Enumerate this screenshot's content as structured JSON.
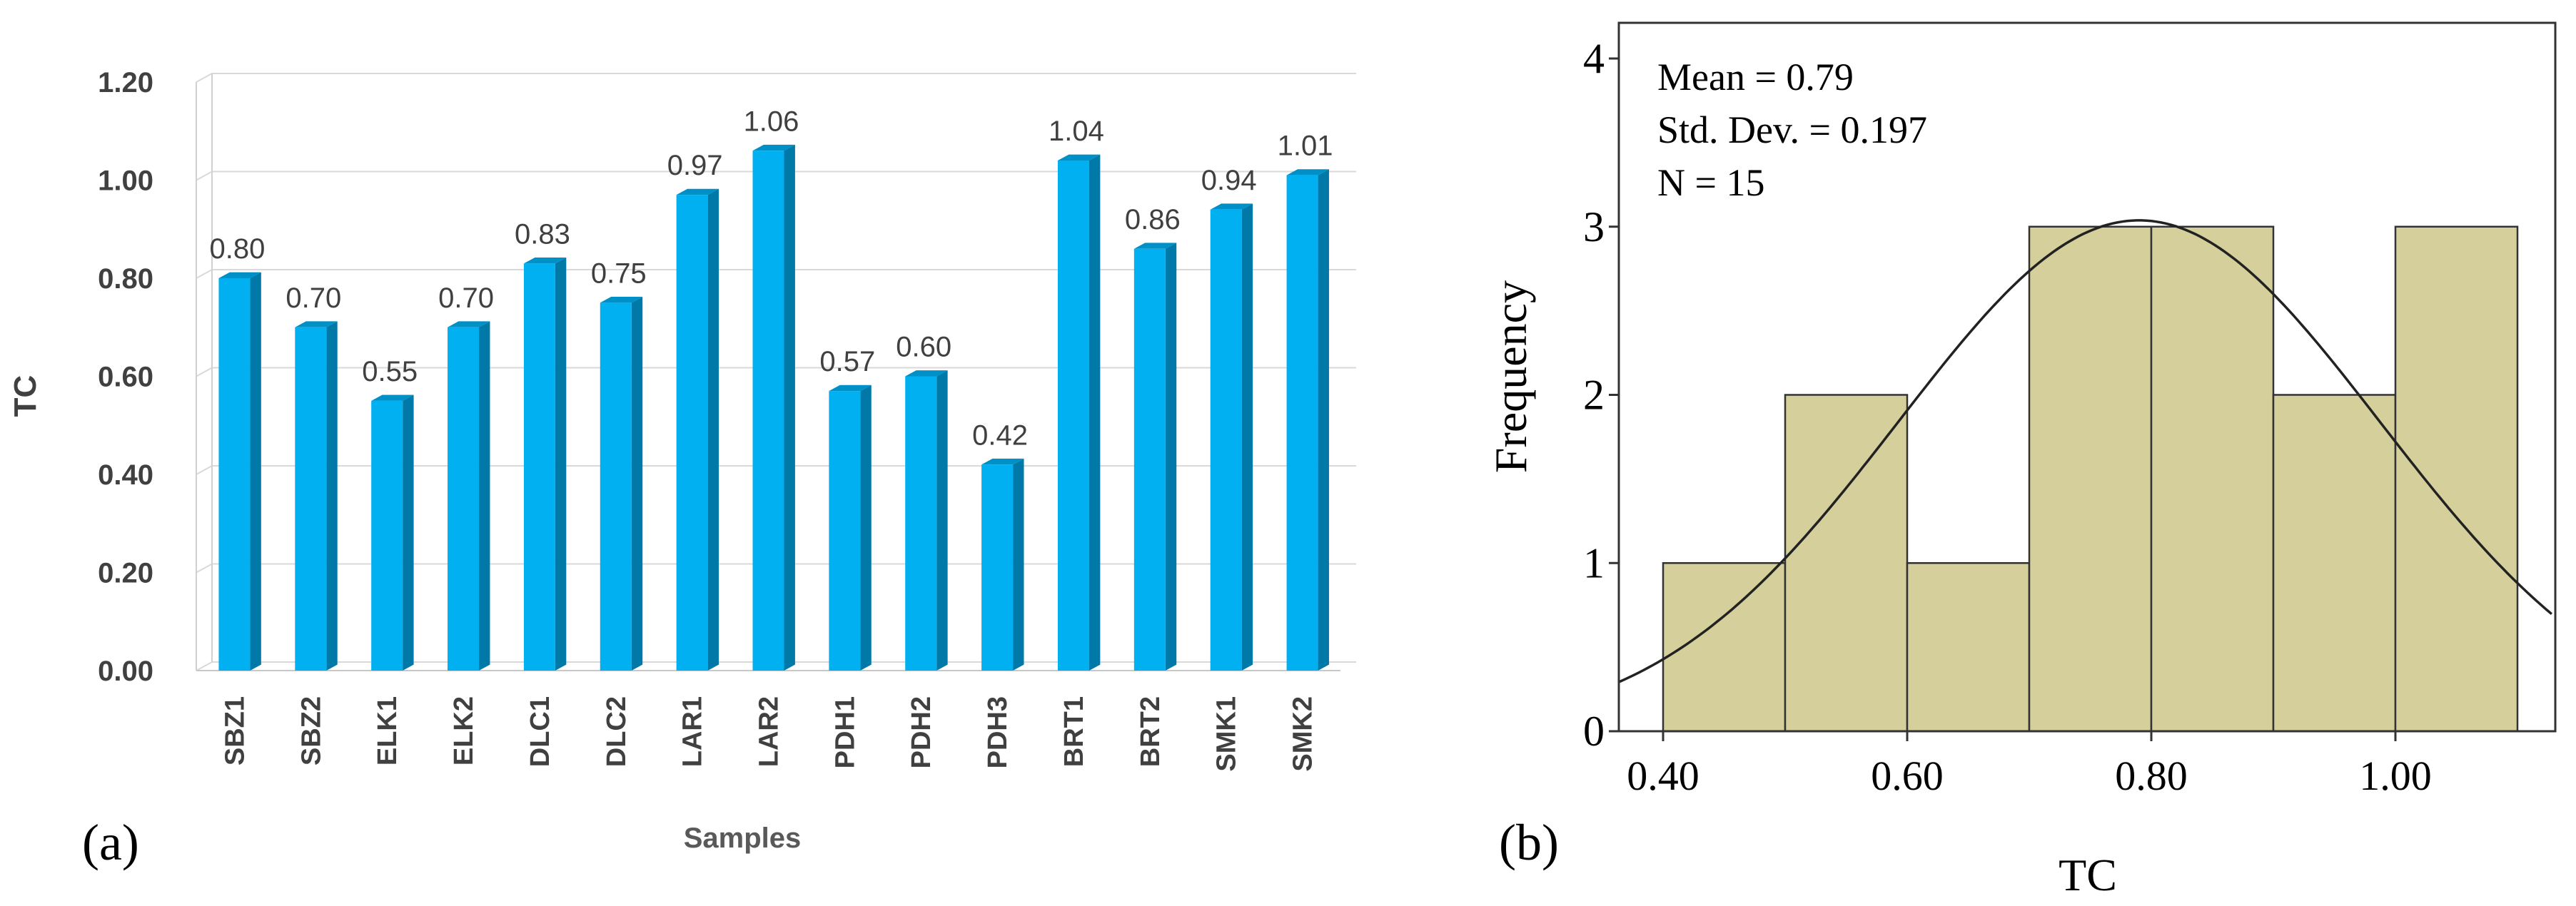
{
  "chart_data": [
    {
      "type": "bar",
      "panel_label": "(a)",
      "title": "",
      "xlabel": "Samples",
      "ylabel": "TC",
      "ylim": [
        0,
        1.2
      ],
      "yticks": [
        "0.00",
        "0.20",
        "0.40",
        "0.60",
        "0.80",
        "1.00",
        "1.20"
      ],
      "categories": [
        "SBZ1",
        "SBZ2",
        "ELK1",
        "ELK2",
        "DLC1",
        "DLC2",
        "LAR1",
        "LAR2",
        "PDH1",
        "PDH2",
        "PDH3",
        "BRT1",
        "BRT2",
        "SMK1",
        "SMK2"
      ],
      "values": [
        0.8,
        0.7,
        0.55,
        0.7,
        0.83,
        0.75,
        0.97,
        1.06,
        0.57,
        0.6,
        0.42,
        1.04,
        0.86,
        0.94,
        1.01
      ],
      "data_labels": [
        "0.80",
        "0.70",
        "0.55",
        "0.70",
        "0.83",
        "0.75",
        "0.97",
        "1.06",
        "0.57",
        "0.60",
        "0.42",
        "1.04",
        "0.86",
        "0.94",
        "1.01"
      ],
      "colors": {
        "bar_front": "#00B0F0",
        "bar_side": "#0078A8",
        "bar_top": "#0090C8",
        "grid": "#D9D9D9"
      },
      "grid": true
    },
    {
      "type": "histogram",
      "panel_label": "(b)",
      "xlabel": "TC",
      "ylabel": "Frequency",
      "xlim": [
        0.36,
        1.16
      ],
      "ylim": [
        0,
        4.1
      ],
      "yticks": [
        "0",
        "1",
        "2",
        "3",
        "4"
      ],
      "xticks": [
        "0.40",
        "0.60",
        "0.80",
        "1.00"
      ],
      "bins": [
        {
          "start": 0.4,
          "end": 0.5,
          "count": 1
        },
        {
          "start": 0.5,
          "end": 0.6,
          "count": 2
        },
        {
          "start": 0.6,
          "end": 0.7,
          "count": 1
        },
        {
          "start": 0.7,
          "end": 0.8,
          "count": 3
        },
        {
          "start": 0.8,
          "end": 0.9,
          "count": 3
        },
        {
          "start": 0.9,
          "end": 1.0,
          "count": 2
        },
        {
          "start": 1.0,
          "end": 1.1,
          "count": 3
        }
      ],
      "stats": {
        "mean": 0.79,
        "std_dev": 0.197,
        "n": 15
      },
      "stats_text": [
        "Mean = 0.79",
        "Std. Dev. = 0.197",
        "N = 15"
      ],
      "normal_curve": true,
      "colors": {
        "bar_fill": "#D4CF9B",
        "bar_stroke": "#333333",
        "curve": "#222222"
      }
    }
  ]
}
